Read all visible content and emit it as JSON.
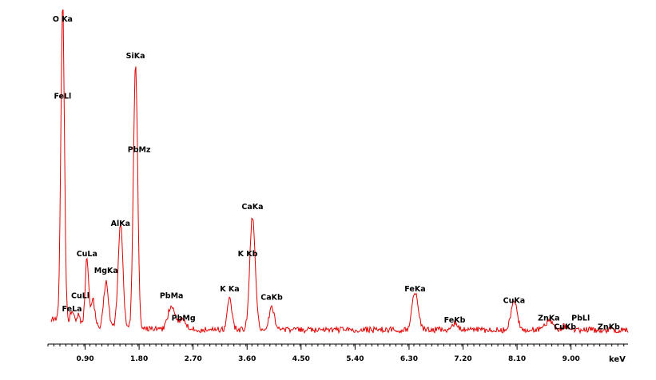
{
  "chart_data": {
    "type": "line",
    "title": "",
    "xlabel": "keV",
    "ylabel": "",
    "xlim": [
      0.28,
      9.95
    ],
    "ylim": [
      0,
      100
    ],
    "grid": false,
    "legend": "none",
    "colors": {
      "spectrum": "#e00000",
      "axis": "#000000",
      "text": "#000000"
    },
    "tick_values": [
      0.9,
      1.8,
      2.7,
      3.6,
      4.5,
      5.4,
      6.3,
      7.2,
      8.1,
      9.0
    ],
    "tick_labels": [
      "0.90",
      "1.80",
      "2.70",
      "3.60",
      "4.50",
      "5.40",
      "6.30",
      "7.20",
      "8.10",
      "9.00"
    ],
    "baseline": 4,
    "peaks": [
      {
        "x": 0.525,
        "h": 94,
        "w": 0.03
      },
      {
        "x": 0.68,
        "h": 4,
        "w": 0.03
      },
      {
        "x": 0.79,
        "h": 3,
        "w": 0.03
      },
      {
        "x": 0.93,
        "h": 20,
        "w": 0.03
      },
      {
        "x": 1.03,
        "h": 8,
        "w": 0.03
      },
      {
        "x": 1.25,
        "h": 13,
        "w": 0.04
      },
      {
        "x": 1.49,
        "h": 31,
        "w": 0.04
      },
      {
        "x": 1.74,
        "h": 80,
        "w": 0.035
      },
      {
        "x": 2.34,
        "h": 7,
        "w": 0.06
      },
      {
        "x": 2.52,
        "h": 3,
        "w": 0.06
      },
      {
        "x": 3.31,
        "h": 9,
        "w": 0.04
      },
      {
        "x": 3.69,
        "h": 34,
        "w": 0.045
      },
      {
        "x": 4.01,
        "h": 7,
        "w": 0.04
      },
      {
        "x": 6.4,
        "h": 11,
        "w": 0.05
      },
      {
        "x": 7.06,
        "h": 2,
        "w": 0.05
      },
      {
        "x": 8.05,
        "h": 9,
        "w": 0.05
      },
      {
        "x": 8.63,
        "h": 3,
        "w": 0.05
      },
      {
        "x": 8.9,
        "h": 1.2,
        "w": 0.05
      }
    ],
    "annotations": [
      {
        "label": "O Ka",
        "x": 0.525,
        "y": 96
      },
      {
        "label": "FeLl",
        "x": 0.525,
        "y": 73
      },
      {
        "label": "SiKa",
        "x": 1.74,
        "y": 85
      },
      {
        "label": "PbMz",
        "x": 1.8,
        "y": 57
      },
      {
        "label": "AlKa",
        "x": 1.49,
        "y": 35
      },
      {
        "label": "CuLa",
        "x": 0.93,
        "y": 26
      },
      {
        "label": "MgKa",
        "x": 1.25,
        "y": 21
      },
      {
        "label": "CuLl",
        "x": 0.82,
        "y": 13.5
      },
      {
        "label": "FeLa",
        "x": 0.68,
        "y": 9.5
      },
      {
        "label": "PbMa",
        "x": 2.34,
        "y": 13.5
      },
      {
        "label": "PbMg",
        "x": 2.54,
        "y": 6.8
      },
      {
        "label": "K Ka",
        "x": 3.31,
        "y": 15.5
      },
      {
        "label": "CaKa",
        "x": 3.69,
        "y": 40
      },
      {
        "label": "K Kb",
        "x": 3.61,
        "y": 26
      },
      {
        "label": "CaKb",
        "x": 4.01,
        "y": 13
      },
      {
        "label": "FeKa",
        "x": 6.4,
        "y": 15.5
      },
      {
        "label": "FeKb",
        "x": 7.06,
        "y": 6.2
      },
      {
        "label": "CuKa",
        "x": 8.05,
        "y": 12
      },
      {
        "label": "ZnKa",
        "x": 8.63,
        "y": 6.8
      },
      {
        "label": "CuKb",
        "x": 8.9,
        "y": 4.2
      },
      {
        "label": "PbLl",
        "x": 9.16,
        "y": 6.8
      },
      {
        "label": "ZnKb",
        "x": 9.63,
        "y": 4.2
      }
    ]
  }
}
